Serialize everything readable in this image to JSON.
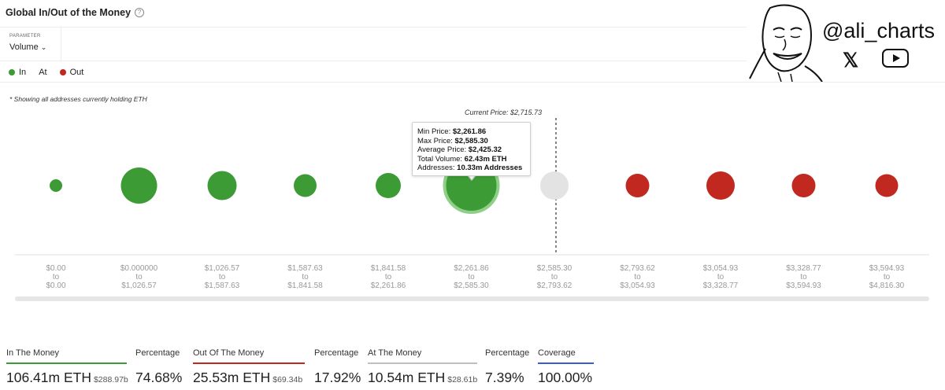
{
  "header": {
    "title": "Global In/Out of the Money",
    "help_icon": "?"
  },
  "parameter": {
    "label": "PARAMETER",
    "value": "Volume"
  },
  "legend": {
    "in": "In",
    "at": "At",
    "out": "Out"
  },
  "note": "* Showing all addresses currently holding ETH",
  "current_price_label": "Current Price: $2,715.73",
  "colors": {
    "in": "#3d9b35",
    "at": "#e3e3e3",
    "out": "#c1281f"
  },
  "tooltip": {
    "min_label": "Min Price: ",
    "min_value": "$2,261.86",
    "max_label": "Max Price: ",
    "max_value": "$2,585.30",
    "avg_label": "Average Price: ",
    "avg_value": "$2,425.32",
    "vol_label": "Total Volume: ",
    "vol_value": "62.43m ETH",
    "addr_label": "Addresses: ",
    "addr_value": "10.33m Addresses"
  },
  "chart_data": {
    "type": "bubble",
    "title": "Global In/Out of the Money",
    "current_price": 2715.73,
    "buckets": [
      {
        "from": "$0.00",
        "to": "$0.00",
        "status": "in",
        "size": 8
      },
      {
        "from": "$0.000000",
        "to": "$1,026.57",
        "status": "in",
        "size": 23
      },
      {
        "from": "$1,026.57",
        "to": "$1,587.63",
        "status": "in",
        "size": 18.5
      },
      {
        "from": "$1,587.63",
        "to": "$1,841.58",
        "status": "in",
        "size": 14.5
      },
      {
        "from": "$1,841.58",
        "to": "$2,261.86",
        "status": "in",
        "size": 16
      },
      {
        "from": "$2,261.86",
        "to": "$2,585.30",
        "status": "in",
        "size": 34,
        "volume": "62.43m ETH",
        "selected": true
      },
      {
        "from": "$2,585.30",
        "to": "$2,793.62",
        "status": "at",
        "size": 18
      },
      {
        "from": "$2,793.62",
        "to": "$3,054.93",
        "status": "out",
        "size": 15
      },
      {
        "from": "$3,054.93",
        "to": "$3,328.77",
        "status": "out",
        "size": 18
      },
      {
        "from": "$3,328.77",
        "to": "$3,594.93",
        "status": "out",
        "size": 15
      },
      {
        "from": "$3,594.93",
        "to": "$4,816.30",
        "status": "out",
        "size": 14.5
      }
    ],
    "range_separator": "to"
  },
  "summary": [
    {
      "label": "In The Money",
      "value": "106.41m ETH",
      "sub": "$288.97b",
      "line_color": "#3d9b35"
    },
    {
      "label": "Percentage",
      "value": "74.68%",
      "sub": "",
      "line_color": ""
    },
    {
      "label": "Out Of The Money",
      "value": "25.53m ETH",
      "sub": "$69.34b",
      "line_color": "#c1281f"
    },
    {
      "label": "Percentage",
      "value": "17.92%",
      "sub": "",
      "line_color": ""
    },
    {
      "label": "At The Money",
      "value": "10.54m ETH",
      "sub": "$28.61b",
      "line_color": "#bfbfbf"
    },
    {
      "label": "Percentage",
      "value": "7.39%",
      "sub": "",
      "line_color": ""
    },
    {
      "label": "Coverage",
      "value": "100.00%",
      "sub": "",
      "line_color": "#3b5bd6"
    }
  ],
  "branding": {
    "handle": "@ali_charts",
    "x_icon": "𝕏",
    "icons": [
      "avatar-icon",
      "x-icon",
      "youtube-icon"
    ]
  }
}
